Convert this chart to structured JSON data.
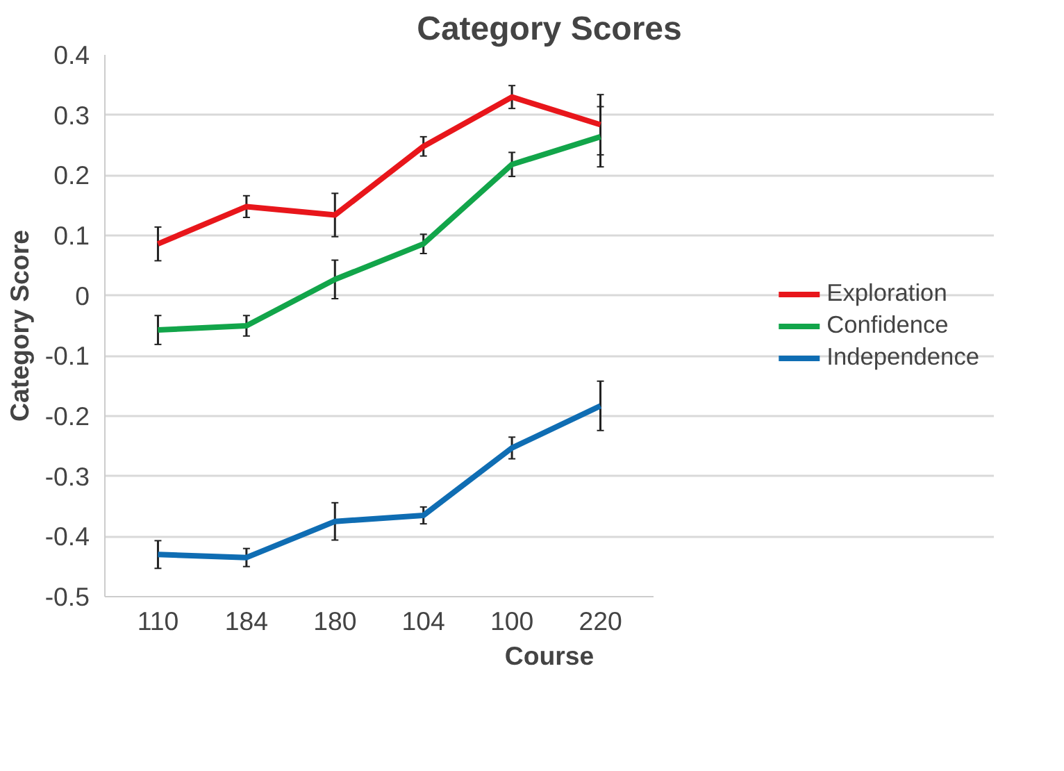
{
  "chart_data": {
    "type": "line",
    "title": "Category Scores",
    "xlabel": "Course",
    "ylabel": "Category Score",
    "categories": [
      "110",
      "184",
      "180",
      "104",
      "100",
      "220"
    ],
    "series": [
      {
        "name": "Exploration",
        "color": "#e8161b",
        "values": [
          0.086,
          0.148,
          0.134,
          0.248,
          0.33,
          0.284
        ],
        "errors": [
          0.028,
          0.018,
          0.036,
          0.016,
          0.019,
          0.05
        ]
      },
      {
        "name": "Confidence",
        "color": "#12a54a",
        "values": [
          -0.057,
          -0.05,
          0.027,
          0.086,
          0.218,
          0.264
        ],
        "errors": [
          0.024,
          0.017,
          0.032,
          0.016,
          0.02,
          0.05
        ]
      },
      {
        "name": "Independence",
        "color": "#0f6db3",
        "values": [
          -0.43,
          -0.435,
          -0.375,
          -0.365,
          -0.253,
          -0.183
        ],
        "errors": [
          0.023,
          0.015,
          0.031,
          0.014,
          0.018,
          0.041
        ]
      }
    ],
    "ylim": [
      -0.5,
      0.4
    ],
    "yticks": [
      -0.5,
      -0.4,
      -0.3,
      -0.2,
      -0.1,
      0,
      0.1,
      0.2,
      0.3,
      0.4
    ],
    "grid": "y",
    "legend": "right",
    "marker": "none",
    "line_style": "solid"
  }
}
